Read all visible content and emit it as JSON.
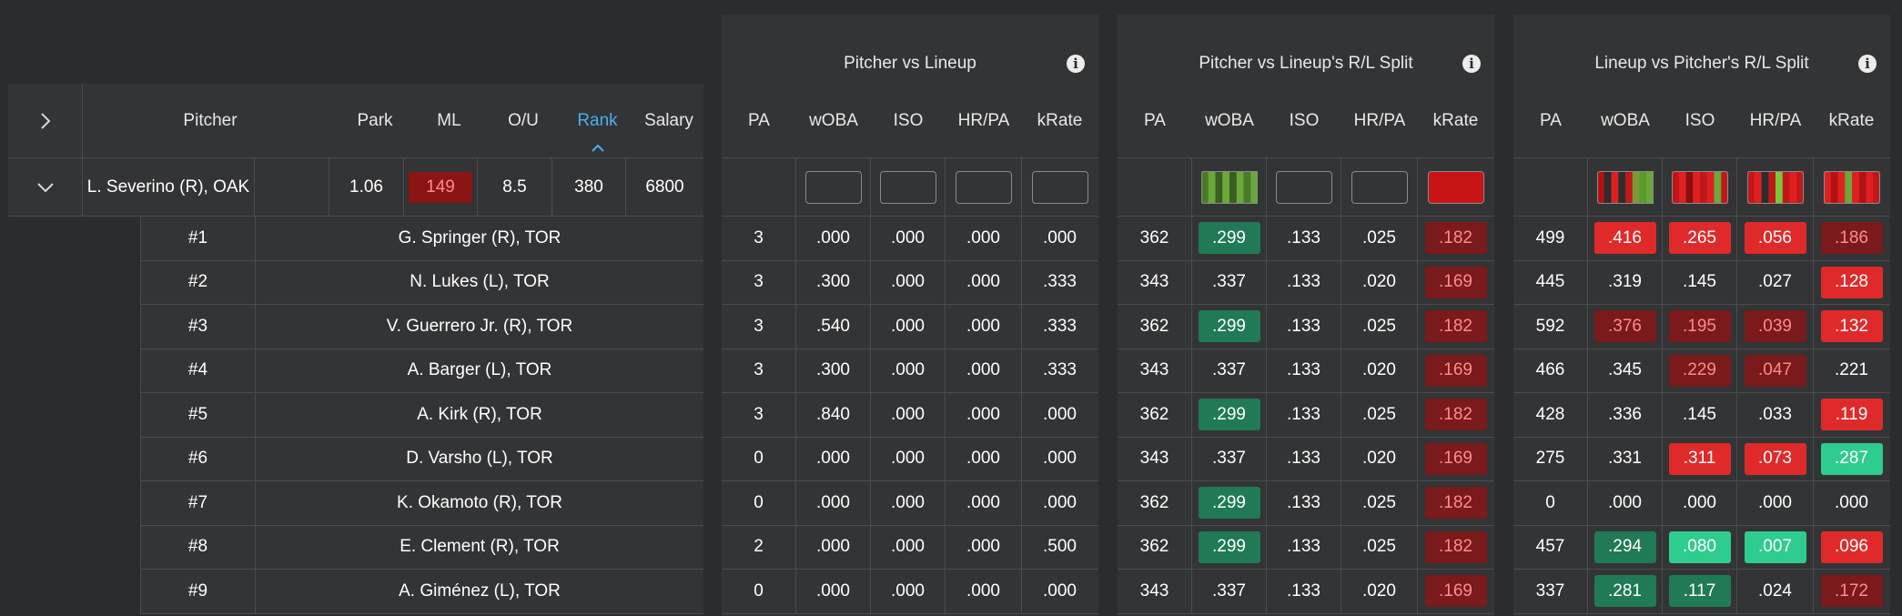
{
  "pitcher_table": {
    "headers": {
      "pitcher": "Pitcher",
      "park": "Park",
      "ml": "ML",
      "ou": "O/U",
      "rank": "Rank",
      "salary": "Salary"
    },
    "pitcher_row": {
      "name": "L. Severino (R), OAK",
      "park": "1.06",
      "ml": "149",
      "ou": "8.5",
      "rank": "380",
      "salary": "6800"
    },
    "lineup": [
      {
        "slot": "#1",
        "name": "G. Springer (R), TOR"
      },
      {
        "slot": "#2",
        "name": "N. Lukes (L), TOR"
      },
      {
        "slot": "#3",
        "name": "V. Guerrero Jr. (R), TOR"
      },
      {
        "slot": "#4",
        "name": "A. Barger (L), TOR"
      },
      {
        "slot": "#5",
        "name": "A. Kirk (R), TOR"
      },
      {
        "slot": "#6",
        "name": "D. Varsho (L), TOR"
      },
      {
        "slot": "#7",
        "name": "K. Okamoto (R), TOR"
      },
      {
        "slot": "#8",
        "name": "E. Clement (R), TOR"
      },
      {
        "slot": "#9",
        "name": "A. Giménez (L), TOR"
      }
    ]
  },
  "stat_headers": [
    "PA",
    "wOBA",
    "ISO",
    "HR/PA",
    "kRate"
  ],
  "panels": [
    {
      "title": "Pitcher vs Lineup",
      "summary": [
        "empty",
        "box",
        "box",
        "box",
        "box"
      ],
      "rows": [
        [
          [
            "3",
            ""
          ],
          [
            ".000",
            ""
          ],
          [
            ".000",
            ""
          ],
          [
            ".000",
            ""
          ],
          [
            ".000",
            ""
          ]
        ],
        [
          [
            "3",
            ""
          ],
          [
            ".300",
            ""
          ],
          [
            ".000",
            ""
          ],
          [
            ".000",
            ""
          ],
          [
            ".333",
            ""
          ]
        ],
        [
          [
            "3",
            ""
          ],
          [
            ".540",
            ""
          ],
          [
            ".000",
            ""
          ],
          [
            ".000",
            ""
          ],
          [
            ".333",
            ""
          ]
        ],
        [
          [
            "3",
            ""
          ],
          [
            ".300",
            ""
          ],
          [
            ".000",
            ""
          ],
          [
            ".000",
            ""
          ],
          [
            ".333",
            ""
          ]
        ],
        [
          [
            "3",
            ""
          ],
          [
            ".840",
            ""
          ],
          [
            ".000",
            ""
          ],
          [
            ".000",
            ""
          ],
          [
            ".000",
            ""
          ]
        ],
        [
          [
            "0",
            ""
          ],
          [
            ".000",
            ""
          ],
          [
            ".000",
            ""
          ],
          [
            ".000",
            ""
          ],
          [
            ".000",
            ""
          ]
        ],
        [
          [
            "0",
            ""
          ],
          [
            ".000",
            ""
          ],
          [
            ".000",
            ""
          ],
          [
            ".000",
            ""
          ],
          [
            ".000",
            ""
          ]
        ],
        [
          [
            "2",
            ""
          ],
          [
            ".000",
            ""
          ],
          [
            ".000",
            ""
          ],
          [
            ".000",
            ""
          ],
          [
            ".500",
            ""
          ]
        ],
        [
          [
            "0",
            ""
          ],
          [
            ".000",
            ""
          ],
          [
            ".000",
            ""
          ],
          [
            ".000",
            ""
          ],
          [
            ".000",
            ""
          ]
        ]
      ]
    },
    {
      "title": "Pitcher vs Lineup's R/L Split",
      "summary": [
        "empty",
        "stripes-green",
        "box",
        "box",
        "solid-red"
      ],
      "rows": [
        [
          [
            "362",
            ""
          ],
          [
            ".299",
            "green-dark"
          ],
          [
            ".133",
            ""
          ],
          [
            ".025",
            ""
          ],
          [
            ".182",
            "red-dark"
          ]
        ],
        [
          [
            "343",
            ""
          ],
          [
            ".337",
            ""
          ],
          [
            ".133",
            ""
          ],
          [
            ".020",
            ""
          ],
          [
            ".169",
            "red-dark"
          ]
        ],
        [
          [
            "362",
            ""
          ],
          [
            ".299",
            "green-dark"
          ],
          [
            ".133",
            ""
          ],
          [
            ".025",
            ""
          ],
          [
            ".182",
            "red-dark"
          ]
        ],
        [
          [
            "343",
            ""
          ],
          [
            ".337",
            ""
          ],
          [
            ".133",
            ""
          ],
          [
            ".020",
            ""
          ],
          [
            ".169",
            "red-dark"
          ]
        ],
        [
          [
            "362",
            ""
          ],
          [
            ".299",
            "green-dark"
          ],
          [
            ".133",
            ""
          ],
          [
            ".025",
            ""
          ],
          [
            ".182",
            "red-dark"
          ]
        ],
        [
          [
            "343",
            ""
          ],
          [
            ".337",
            ""
          ],
          [
            ".133",
            ""
          ],
          [
            ".020",
            ""
          ],
          [
            ".169",
            "red-dark"
          ]
        ],
        [
          [
            "362",
            ""
          ],
          [
            ".299",
            "green-dark"
          ],
          [
            ".133",
            ""
          ],
          [
            ".025",
            ""
          ],
          [
            ".182",
            "red-dark"
          ]
        ],
        [
          [
            "362",
            ""
          ],
          [
            ".299",
            "green-dark"
          ],
          [
            ".133",
            ""
          ],
          [
            ".025",
            ""
          ],
          [
            ".182",
            "red-dark"
          ]
        ],
        [
          [
            "343",
            ""
          ],
          [
            ".337",
            ""
          ],
          [
            ".133",
            ""
          ],
          [
            ".020",
            ""
          ],
          [
            ".169",
            "red-dark"
          ]
        ]
      ]
    },
    {
      "title": "Lineup vs Pitcher's R/L Split",
      "summary": [
        "empty",
        "stripes-mixed",
        "stripes-mixed2",
        "stripes-mixed3",
        "stripes-red"
      ],
      "rows": [
        [
          [
            "499",
            ""
          ],
          [
            ".416",
            "red-bright"
          ],
          [
            ".265",
            "red-bright"
          ],
          [
            ".056",
            "red-bright"
          ],
          [
            ".186",
            "red-dark"
          ]
        ],
        [
          [
            "445",
            ""
          ],
          [
            ".319",
            ""
          ],
          [
            ".145",
            ""
          ],
          [
            ".027",
            ""
          ],
          [
            ".128",
            "red-bright"
          ]
        ],
        [
          [
            "592",
            ""
          ],
          [
            ".376",
            "red-dark"
          ],
          [
            ".195",
            "red-dark"
          ],
          [
            ".039",
            "red-dark"
          ],
          [
            ".132",
            "red-bright"
          ]
        ],
        [
          [
            "466",
            ""
          ],
          [
            ".345",
            ""
          ],
          [
            ".229",
            "red-dark"
          ],
          [
            ".047",
            "red-dark"
          ],
          [
            ".221",
            ""
          ]
        ],
        [
          [
            "428",
            ""
          ],
          [
            ".336",
            ""
          ],
          [
            ".145",
            ""
          ],
          [
            ".033",
            ""
          ],
          [
            ".119",
            "red-bright"
          ]
        ],
        [
          [
            "275",
            ""
          ],
          [
            ".331",
            ""
          ],
          [
            ".311",
            "red-bright"
          ],
          [
            ".073",
            "red-bright"
          ],
          [
            ".287",
            "green-bright"
          ]
        ],
        [
          [
            "0",
            ""
          ],
          [
            ".000",
            ""
          ],
          [
            ".000",
            ""
          ],
          [
            ".000",
            ""
          ],
          [
            ".000",
            ""
          ]
        ],
        [
          [
            "457",
            ""
          ],
          [
            ".294",
            "green-dark"
          ],
          [
            ".080",
            "green-bright"
          ],
          [
            ".007",
            "green-bright"
          ],
          [
            ".096",
            "red-bright"
          ]
        ],
        [
          [
            "337",
            ""
          ],
          [
            ".281",
            "green-dark"
          ],
          [
            ".117",
            "green-dark"
          ],
          [
            ".024",
            ""
          ],
          [
            ".172",
            "red-dark"
          ]
        ]
      ]
    }
  ],
  "icons": {
    "expand": "chevron-right-icon",
    "collapse": "chevron-down-icon",
    "info": "info-icon",
    "sort": "sort-up-icon"
  }
}
